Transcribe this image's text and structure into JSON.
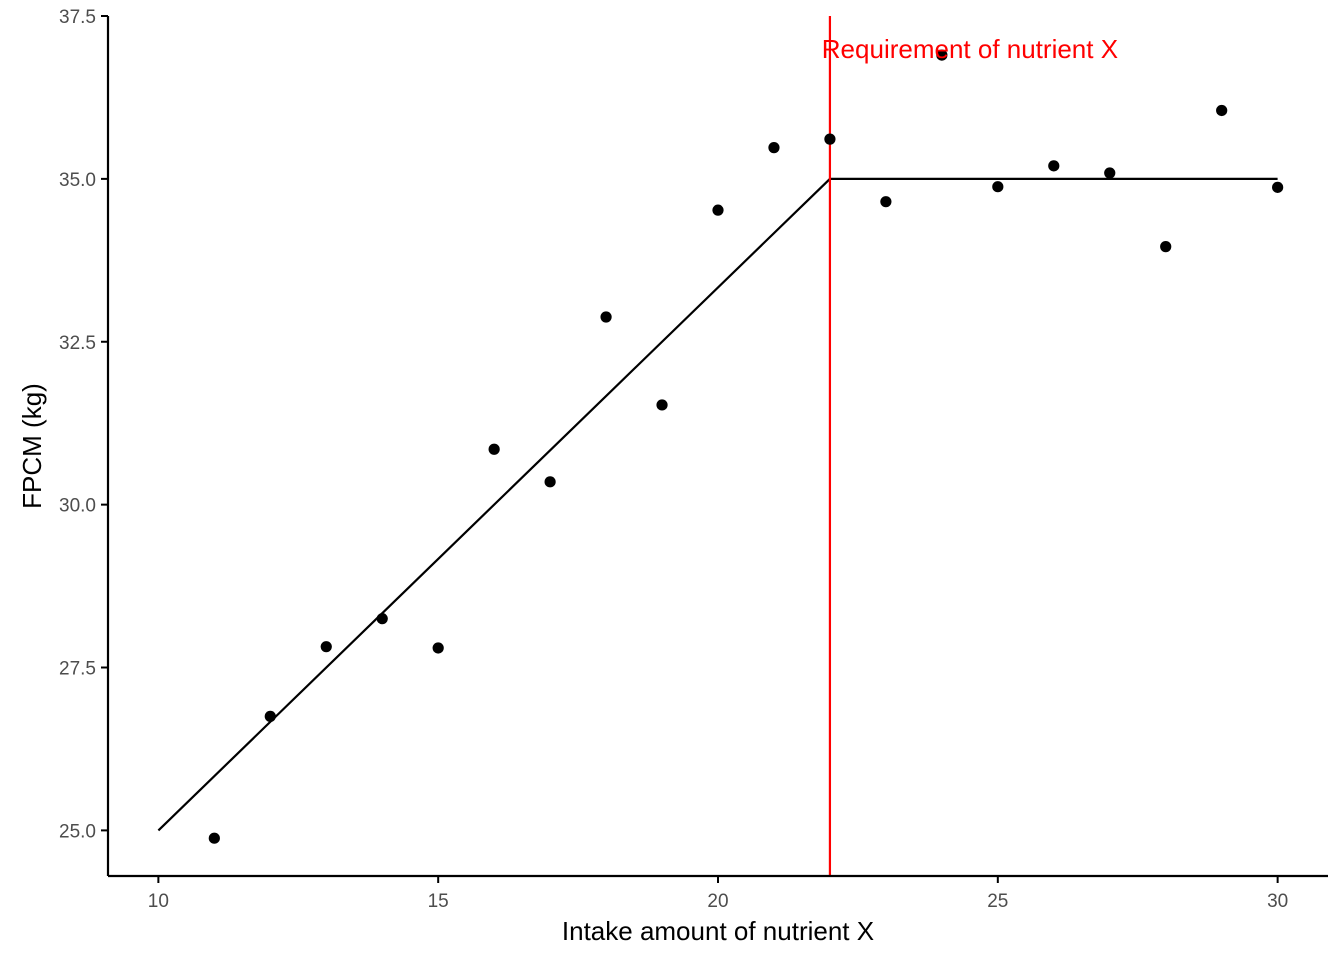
{
  "chart_data": {
    "type": "scatter",
    "xlabel": "Intake amount of nutrient X",
    "ylabel": "FPCM (kg)",
    "xlim": [
      9.1,
      30.9
    ],
    "ylim": [
      24.3,
      37.5
    ],
    "x_ticks": [
      10,
      15,
      20,
      25,
      30
    ],
    "x_tick_labels": [
      "10",
      "15",
      "20",
      "25",
      "30"
    ],
    "y_ticks": [
      25.0,
      27.5,
      30.0,
      32.5,
      35.0,
      37.5
    ],
    "y_tick_labels": [
      "25.0",
      "27.5",
      "30.0",
      "32.5",
      "35.0",
      "37.5"
    ],
    "grid": false,
    "points": {
      "x": [
        11,
        12,
        13,
        14,
        15,
        16,
        17,
        18,
        19,
        20,
        21,
        22,
        23,
        24,
        25,
        26,
        27,
        28,
        29,
        30
      ],
      "y": [
        24.88,
        26.75,
        27.82,
        28.25,
        27.8,
        30.85,
        30.35,
        32.88,
        31.53,
        34.52,
        35.48,
        35.61,
        34.65,
        36.9,
        34.88,
        35.2,
        35.09,
        33.96,
        36.05,
        34.87
      ]
    },
    "fitted_line": {
      "x": [
        10,
        22,
        30
      ],
      "y": [
        25.0,
        35.0,
        35.0
      ]
    },
    "reference_line": {
      "x": 22,
      "label": "Requirement of nutrient X",
      "label_y": 36.9,
      "color": "#ff0000"
    },
    "colors": {
      "points": "#000000",
      "fit": "#000000",
      "axis": "#000000",
      "tick_label": "#4d4d4d"
    }
  }
}
